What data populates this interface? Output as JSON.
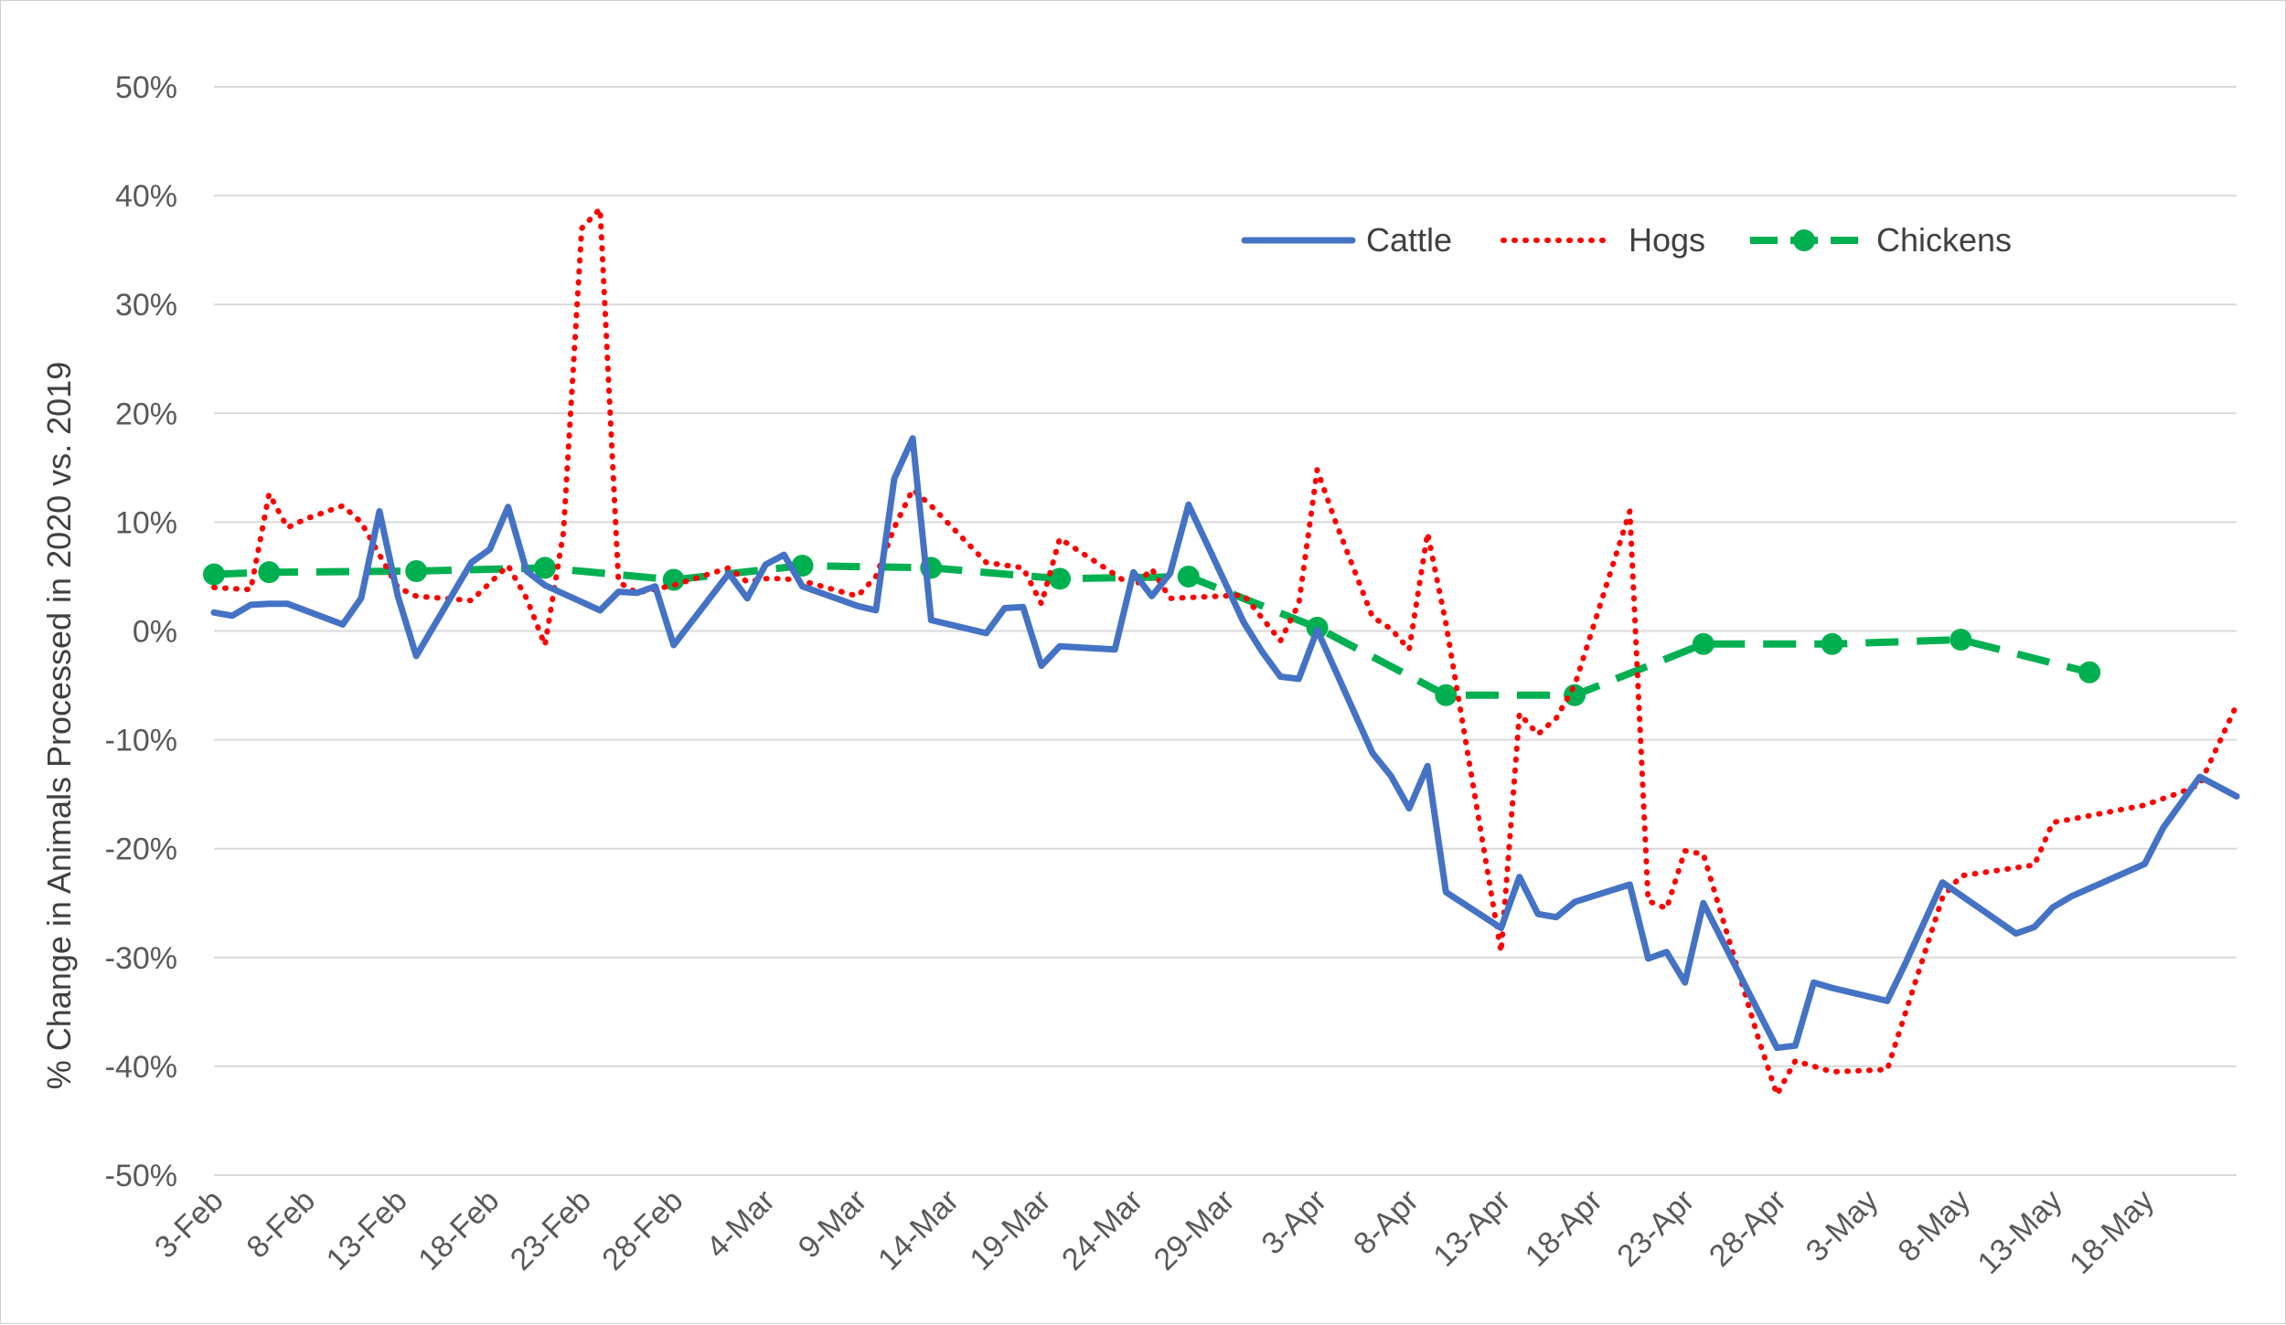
{
  "chart_data": {
    "type": "line",
    "title": "",
    "xlabel": "",
    "ylabel": "% Change in Animals Processed in 2020 vs. 2019",
    "ylim": [
      -50,
      50
    ],
    "y_ticks": [
      50,
      40,
      30,
      20,
      10,
      0,
      -10,
      -20,
      -30,
      -40,
      -50
    ],
    "y_tick_labels": [
      "50%",
      "40%",
      "30%",
      "20%",
      "10%",
      "0%",
      "-10%",
      "-20%",
      "-30%",
      "-40%",
      "-50%"
    ],
    "x_range": [
      "3-Feb",
      "23-May"
    ],
    "x_tick_labels": [
      "3-Feb",
      "8-Feb",
      "13-Feb",
      "18-Feb",
      "23-Feb",
      "28-Feb",
      "4-Mar",
      "9-Mar",
      "14-Mar",
      "19-Mar",
      "24-Mar",
      "29-Mar",
      "3-Apr",
      "8-Apr",
      "13-Apr",
      "18-Apr",
      "23-Apr",
      "28-Apr",
      "3-May",
      "8-May",
      "13-May",
      "18-May"
    ],
    "grid": true,
    "legend_position": "top-right",
    "series": [
      {
        "name": "Cattle",
        "color": "#4472c4",
        "style": "solid",
        "points": [
          [
            "3-Feb",
            1.7
          ],
          [
            "4-Feb",
            1.4
          ],
          [
            "5-Feb",
            2.4
          ],
          [
            "6-Feb",
            2.5
          ],
          [
            "7-Feb",
            2.5
          ],
          [
            "10-Feb",
            0.6
          ],
          [
            "11-Feb",
            3.0
          ],
          [
            "12-Feb",
            11.0
          ],
          [
            "13-Feb",
            3.2
          ],
          [
            "14-Feb",
            -2.3
          ],
          [
            "17-Feb",
            6.3
          ],
          [
            "18-Feb",
            7.5
          ],
          [
            "19-Feb",
            11.4
          ],
          [
            "20-Feb",
            5.5
          ],
          [
            "21-Feb",
            4.2
          ],
          [
            "24-Feb",
            1.9
          ],
          [
            "25-Feb",
            3.6
          ],
          [
            "26-Feb",
            3.5
          ],
          [
            "27-Feb",
            4.1
          ],
          [
            "28-Feb",
            -1.3
          ],
          [
            "2-Mar",
            5.3
          ],
          [
            "3-Mar",
            3.0
          ],
          [
            "4-Mar",
            6.1
          ],
          [
            "5-Mar",
            7.0
          ],
          [
            "6-Mar",
            4.1
          ],
          [
            "9-Mar",
            2.3
          ],
          [
            "10-Mar",
            1.9
          ],
          [
            "11-Mar",
            14.0
          ],
          [
            "12-Mar",
            17.7
          ],
          [
            "13-Mar",
            1.0
          ],
          [
            "16-Mar",
            -0.2
          ],
          [
            "17-Mar",
            2.1
          ],
          [
            "18-Mar",
            2.2
          ],
          [
            "19-Mar",
            -3.2
          ],
          [
            "20-Mar",
            -1.4
          ],
          [
            "23-Mar",
            -1.7
          ],
          [
            "24-Mar",
            5.4
          ],
          [
            "25-Mar",
            3.2
          ],
          [
            "26-Mar",
            5.3
          ],
          [
            "27-Mar",
            11.6
          ],
          [
            "30-Mar",
            0.8
          ],
          [
            "31-Mar",
            -1.9
          ],
          [
            "1-Apr",
            -4.2
          ],
          [
            "2-Apr",
            -4.4
          ],
          [
            "3-Apr",
            0.1
          ],
          [
            "6-Apr",
            -11.2
          ],
          [
            "7-Apr",
            -13.3
          ],
          [
            "8-Apr",
            -16.3
          ],
          [
            "9-Apr",
            -12.4
          ],
          [
            "10-Apr",
            -24.0
          ],
          [
            "13-Apr",
            -27.3
          ],
          [
            "14-Apr",
            -22.6
          ],
          [
            "15-Apr",
            -26.0
          ],
          [
            "16-Apr",
            -26.3
          ],
          [
            "17-Apr",
            -24.9
          ],
          [
            "20-Apr",
            -23.3
          ],
          [
            "21-Apr",
            -30.1
          ],
          [
            "22-Apr",
            -29.5
          ],
          [
            "23-Apr",
            -32.3
          ],
          [
            "24-Apr",
            -25.0
          ],
          [
            "27-Apr",
            -35.0
          ],
          [
            "28-Apr",
            -38.3
          ],
          [
            "29-Apr",
            -38.1
          ],
          [
            "30-Apr",
            -32.3
          ],
          [
            "1-May",
            -32.8
          ],
          [
            "4-May",
            -34.0
          ],
          [
            "5-May",
            -30.5
          ],
          [
            "7-May",
            -23.1
          ],
          [
            "11-May",
            -27.8
          ],
          [
            "12-May",
            -27.2
          ],
          [
            "13-May",
            -25.4
          ],
          [
            "14-May",
            -24.4
          ],
          [
            "18-May",
            -21.4
          ],
          [
            "19-May",
            -18.1
          ],
          [
            "21-May",
            -13.4
          ],
          [
            "23-May",
            -15.2
          ]
        ]
      },
      {
        "name": "Hogs",
        "color": "#ff0000",
        "style": "dotted",
        "points": [
          [
            "3-Feb",
            4.0
          ],
          [
            "4-Feb",
            3.9
          ],
          [
            "5-Feb",
            3.8
          ],
          [
            "6-Feb",
            12.6
          ],
          [
            "7-Feb",
            9.5
          ],
          [
            "8-Feb",
            10.3
          ],
          [
            "10-Feb",
            11.5
          ],
          [
            "11-Feb",
            10.0
          ],
          [
            "12-Feb",
            7.0
          ],
          [
            "13-Feb",
            4.0
          ],
          [
            "14-Feb",
            3.2
          ],
          [
            "17-Feb",
            2.8
          ],
          [
            "19-Feb",
            6.0
          ],
          [
            "20-Feb",
            3.0
          ],
          [
            "21-Feb",
            -1.3
          ],
          [
            "22-Feb",
            9.0
          ],
          [
            "23-Feb",
            37.0
          ],
          [
            "24-Feb",
            38.8
          ],
          [
            "25-Feb",
            4.5
          ],
          [
            "26-Feb",
            3.5
          ],
          [
            "28-Feb",
            4.2
          ],
          [
            "2-Mar",
            5.8
          ],
          [
            "3-Mar",
            4.5
          ],
          [
            "4-Mar",
            4.8
          ],
          [
            "5-Mar",
            4.8
          ],
          [
            "6-Mar",
            4.6
          ],
          [
            "9-Mar",
            3.2
          ],
          [
            "10-Mar",
            5.0
          ],
          [
            "11-Mar",
            9.5
          ],
          [
            "12-Mar",
            13.0
          ],
          [
            "13-Mar",
            11.5
          ],
          [
            "16-Mar",
            6.3
          ],
          [
            "18-Mar",
            5.8
          ],
          [
            "19-Mar",
            2.5
          ],
          [
            "20-Mar",
            8.5
          ],
          [
            "23-Mar",
            5.2
          ],
          [
            "24-Mar",
            4.0
          ],
          [
            "25-Mar",
            5.7
          ],
          [
            "26-Mar",
            3.0
          ],
          [
            "30-Mar",
            3.3
          ],
          [
            "1-Apr",
            -0.9
          ],
          [
            "2-Apr",
            2.5
          ],
          [
            "3-Apr",
            14.8
          ],
          [
            "4-Apr",
            10.0
          ],
          [
            "6-Apr",
            1.3
          ],
          [
            "7-Apr",
            0.2
          ],
          [
            "8-Apr",
            -1.7
          ],
          [
            "9-Apr",
            9.0
          ],
          [
            "10-Apr",
            0.7
          ],
          [
            "13-Apr",
            -29.5
          ],
          [
            "14-Apr",
            -7.6
          ],
          [
            "15-Apr",
            -9.5
          ],
          [
            "16-Apr",
            -8.0
          ],
          [
            "17-Apr",
            -5.0
          ],
          [
            "20-Apr",
            11.0
          ],
          [
            "21-Apr",
            -24.8
          ],
          [
            "22-Apr",
            -25.5
          ],
          [
            "23-Apr",
            -20.2
          ],
          [
            "24-Apr",
            -20.5
          ],
          [
            "27-Apr",
            -37.5
          ],
          [
            "28-Apr",
            -42.6
          ],
          [
            "29-Apr",
            -39.5
          ],
          [
            "1-May",
            -40.5
          ],
          [
            "4-May",
            -40.3
          ],
          [
            "7-May",
            -24.5
          ],
          [
            "8-May",
            -22.5
          ],
          [
            "12-May",
            -21.5
          ],
          [
            "13-May",
            -17.6
          ],
          [
            "14-May",
            -17.3
          ],
          [
            "18-May",
            -16.0
          ],
          [
            "20-May",
            -14.8
          ],
          [
            "21-May",
            -14.1
          ],
          [
            "23-May",
            -6.8
          ]
        ]
      },
      {
        "name": "Chickens",
        "color": "#00b050",
        "style": "dashed-with-markers",
        "points": [
          [
            "3-Feb",
            5.2
          ],
          [
            "6-Feb",
            5.4
          ],
          [
            "14-Feb",
            5.5
          ],
          [
            "21-Feb",
            5.8
          ],
          [
            "28-Feb",
            4.7
          ],
          [
            "6-Mar",
            6.0
          ],
          [
            "13-Mar",
            5.8
          ],
          [
            "20-Mar",
            4.8
          ],
          [
            "27-Mar",
            5.0
          ],
          [
            "3-Apr",
            0.3
          ],
          [
            "10-Apr",
            -5.9
          ],
          [
            "17-Apr",
            -5.9
          ],
          [
            "24-Apr",
            -1.2
          ],
          [
            "1-May",
            -1.2
          ],
          [
            "8-May",
            -0.8
          ],
          [
            "15-May",
            -3.8
          ]
        ]
      }
    ]
  }
}
